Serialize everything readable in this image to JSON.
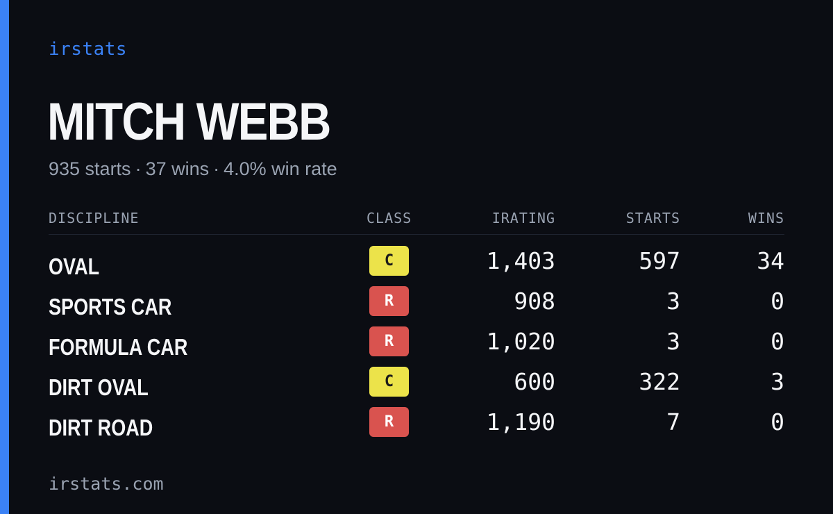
{
  "brand": "irstats",
  "driver": {
    "name": "MITCH WEBB",
    "starts_text": "935 starts",
    "wins_text": "37 wins",
    "win_rate_text": "4.0% win rate",
    "separator": "·"
  },
  "table": {
    "headers": {
      "discipline": "DISCIPLINE",
      "class": "CLASS",
      "irating": "IRATING",
      "starts": "STARTS",
      "wins": "WINS"
    },
    "rows": [
      {
        "discipline": "OVAL",
        "class": "C",
        "class_color": "#ece34a",
        "class_text_color": "#1a1a1a",
        "irating": "1,403",
        "starts": "597",
        "wins": "34"
      },
      {
        "discipline": "SPORTS CAR",
        "class": "R",
        "class_color": "#d9534f",
        "class_text_color": "#ffffff",
        "irating": "908",
        "starts": "3",
        "wins": "0"
      },
      {
        "discipline": "FORMULA CAR",
        "class": "R",
        "class_color": "#d9534f",
        "class_text_color": "#ffffff",
        "irating": "1,020",
        "starts": "3",
        "wins": "0"
      },
      {
        "discipline": "DIRT OVAL",
        "class": "C",
        "class_color": "#ece34a",
        "class_text_color": "#1a1a1a",
        "irating": "600",
        "starts": "322",
        "wins": "3"
      },
      {
        "discipline": "DIRT ROAD",
        "class": "R",
        "class_color": "#d9534f",
        "class_text_color": "#ffffff",
        "irating": "1,190",
        "starts": "7",
        "wins": "0"
      }
    ]
  },
  "footer": "irstats.com",
  "colors": {
    "accent": "#3b82f6",
    "background": "#0b0d13",
    "muted_text": "#9aa3b2",
    "primary_text": "#f5f6f8"
  }
}
